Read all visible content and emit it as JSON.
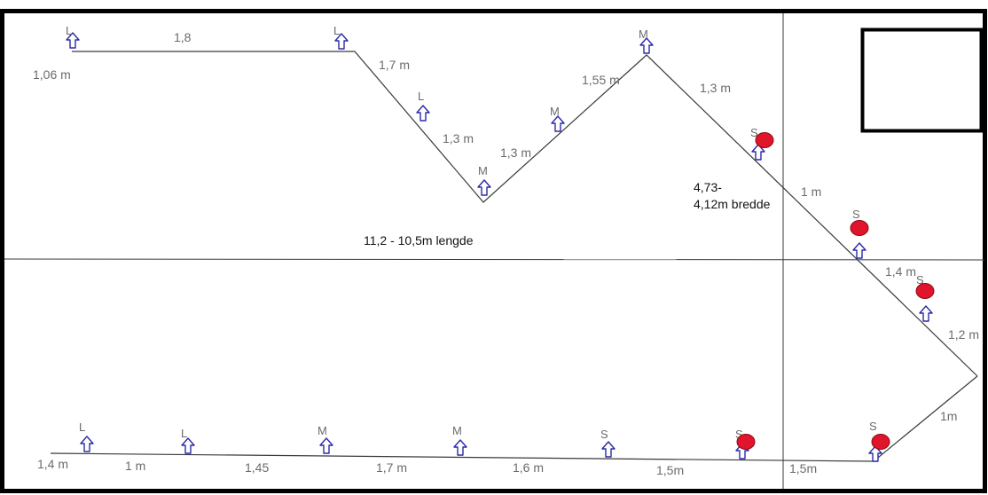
{
  "colors": {
    "outline": "#000000",
    "line": "#3a3a3a",
    "arrow": "#2a2aa8",
    "marker": "#e0142a",
    "label_gray": "#6b6b6b",
    "annotation": "#111111"
  },
  "annotations": {
    "width": [
      "4,73-",
      "4,12m bredde"
    ],
    "length": "11,2 - 10,5m lengde"
  },
  "segment_lengths": {
    "top": [
      "1,06 m",
      "1,8",
      "1,7 m",
      "1,3 m",
      "1,3 m",
      "1,55 m",
      "1,3 m",
      "1 m",
      "1,4 m",
      "1,2 m",
      "1m"
    ],
    "bottom": [
      "1,4 m",
      "1 m",
      "1,45",
      "1,7 m",
      "1,6 m",
      "1,5m",
      "1,5m"
    ]
  },
  "positions": {
    "top": [
      "L",
      "L",
      "L",
      "M",
      "M",
      "M",
      "S",
      "S",
      "S"
    ],
    "bottom": [
      "L",
      "L",
      "M",
      "M",
      "S",
      "S",
      "S"
    ]
  },
  "icons": {
    "position_arrow": "up-arrow-icon",
    "red_marker": "red-dot-marker"
  }
}
